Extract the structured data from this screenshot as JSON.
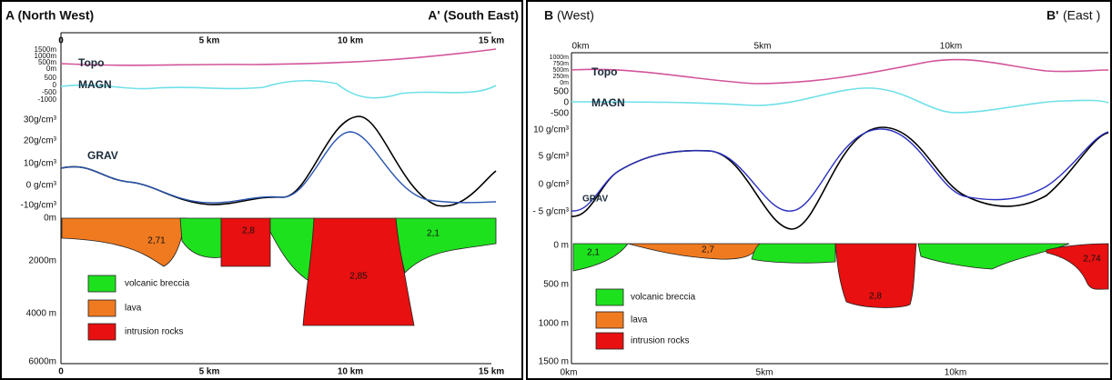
{
  "panels": [
    {
      "title_letter": "A (North West)",
      "title_right": "A' (South East)",
      "top_axis": [
        "0",
        "5 km",
        "10 km",
        "15 km"
      ],
      "bottom_axis": [
        "0",
        "5 km",
        "10 km",
        "15 km"
      ],
      "topo_ticks": [
        "1500m",
        "1000m",
        "500m",
        "0m"
      ],
      "magn_ticks": [
        "500",
        "0",
        "-500",
        "-1000"
      ],
      "grav_ticks": [
        "30g/cm³",
        "20g/cm³",
        "10g/cm³",
        "0 g/cm³",
        "-10g/cm³"
      ],
      "depth_ticks": [
        "0m",
        "2000m",
        "4000 m",
        "6000m"
      ],
      "curve_labels": [
        "Topo",
        "MAGN",
        "GRAV"
      ],
      "body_labels": [
        "2,71",
        "2,8",
        "2,85",
        "2,1"
      ],
      "legend": [
        "volcanic breccia",
        "lava",
        "intrusion rocks"
      ]
    },
    {
      "title_letter": "B",
      "title_text": "(West)",
      "title_right_letter": "B'",
      "title_right_text": "(East )",
      "top_axis": [
        "0km",
        "5km",
        "10km"
      ],
      "bottom_axis": [
        "0km",
        "5km",
        "10km"
      ],
      "topo_ticks": [
        "1000m",
        "750m",
        "500m",
        "250m",
        "0m"
      ],
      "magn_ticks": [
        "500",
        "0",
        "-500"
      ],
      "grav_ticks": [
        "10 g/cm³",
        "5 g/cm³",
        "0 g/cm³",
        "- 5 g/cm³"
      ],
      "depth_ticks": [
        "0 m",
        "500 m",
        "1000 m",
        "1500 m"
      ],
      "curve_labels": [
        "Topo",
        "MAGN",
        "GRAV"
      ],
      "body_labels": [
        "2,1",
        "2,7",
        "2,8",
        "2,74"
      ],
      "legend": [
        "volcanic breccia",
        "lava",
        "intrusion rocks"
      ]
    }
  ]
}
